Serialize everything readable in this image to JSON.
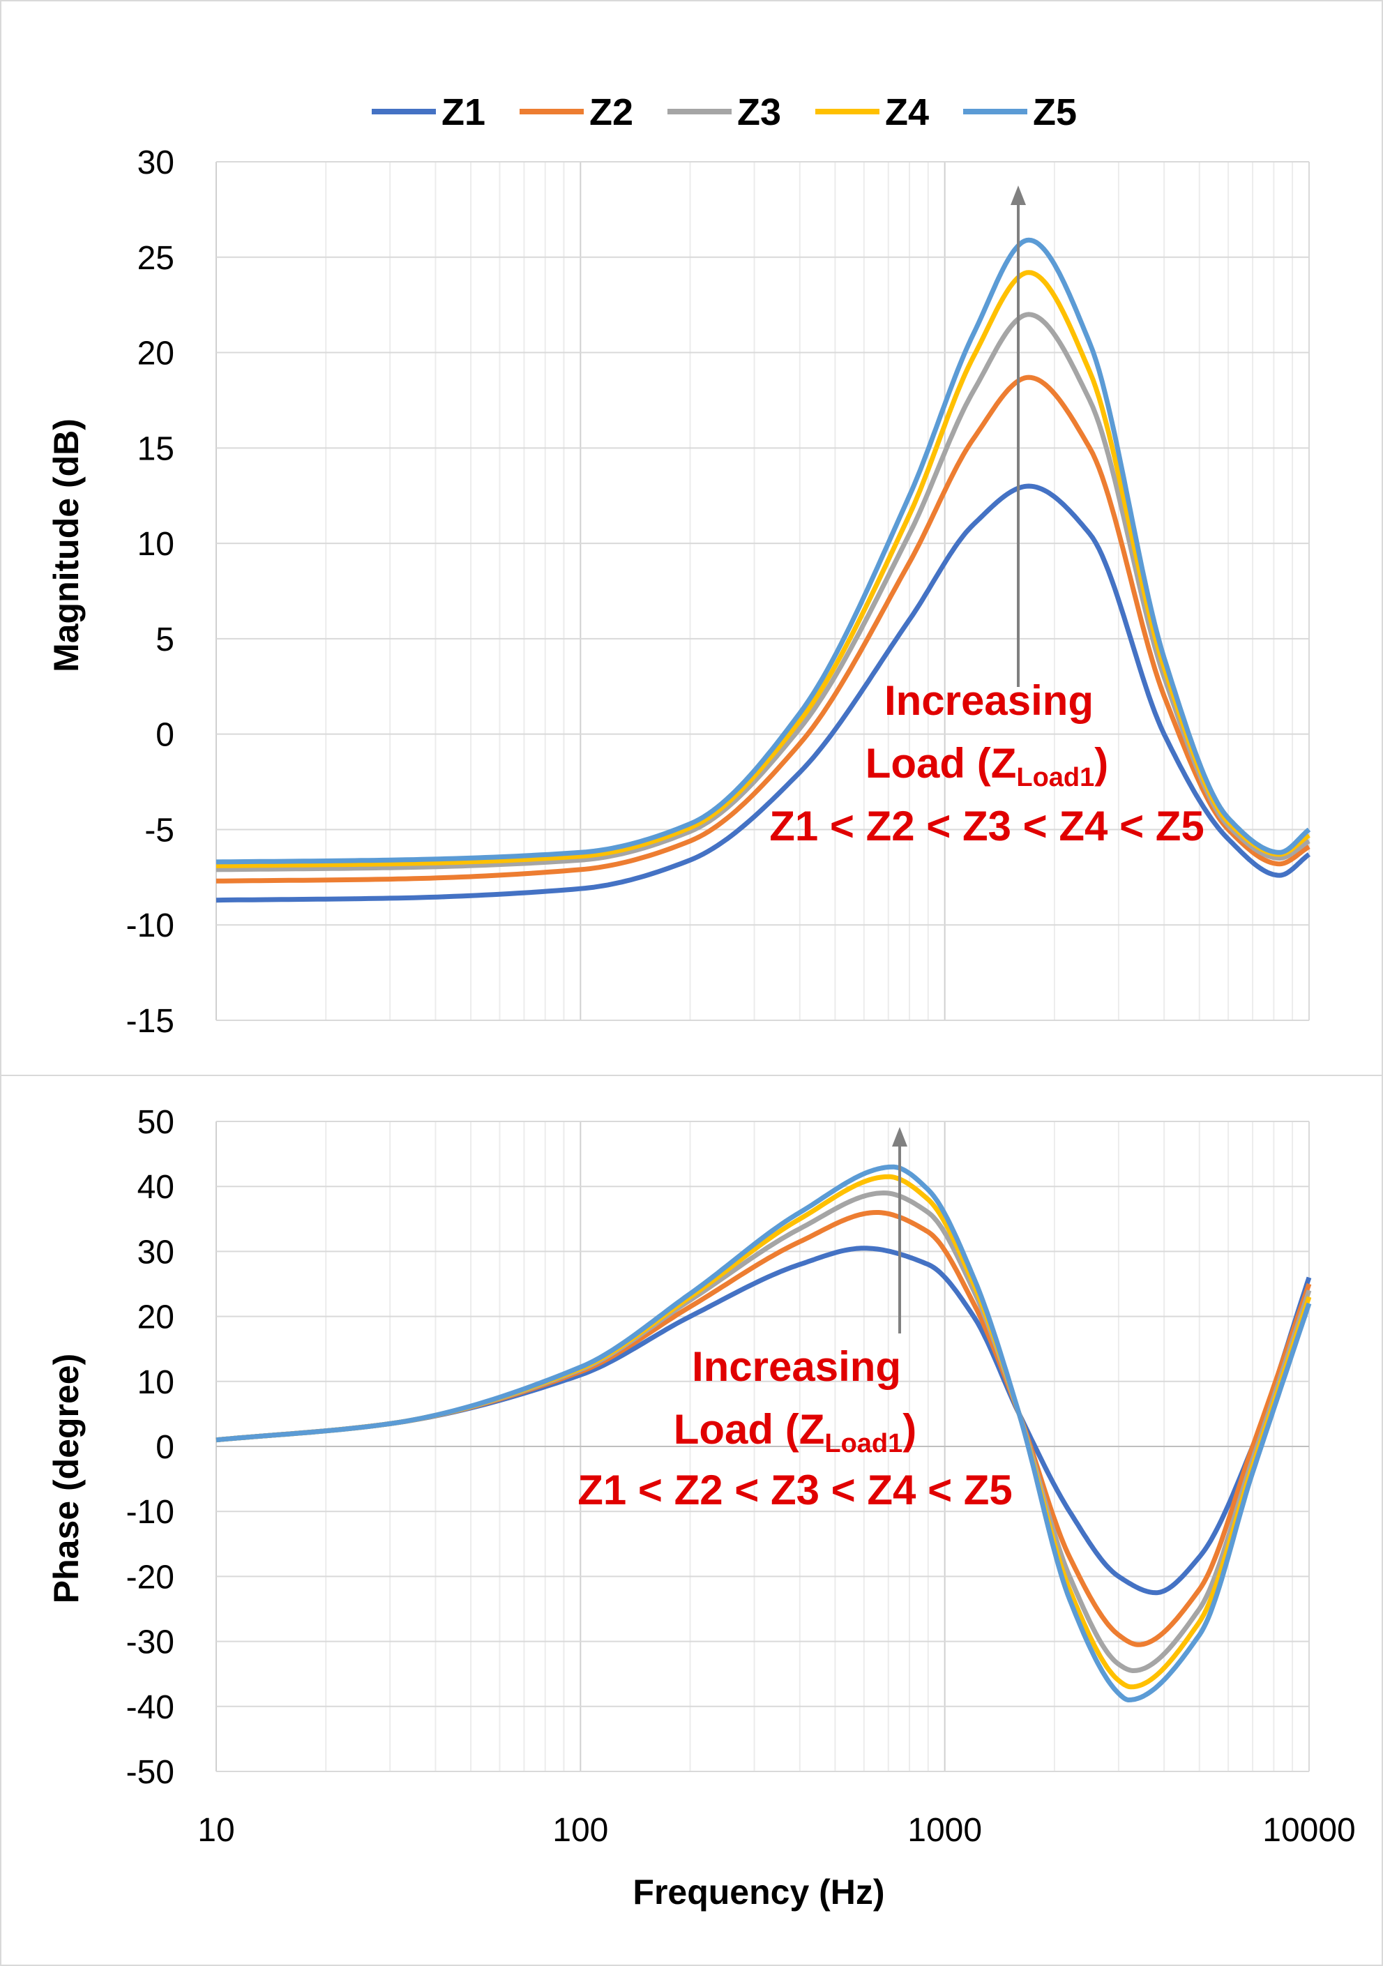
{
  "legend": [
    {
      "name": "Z1",
      "color": "#4472C4"
    },
    {
      "name": "Z2",
      "color": "#ED7D31"
    },
    {
      "name": "Z3",
      "color": "#A5A5A5"
    },
    {
      "name": "Z4",
      "color": "#FFC000"
    },
    {
      "name": "Z5",
      "color": "#5B9BD5"
    }
  ],
  "annotations": {
    "line1": "Increasing",
    "line2_prefix": "Load (Z",
    "line2_sub": "Load1",
    "line2_suffix": ")",
    "line3": "Z1 < Z2  < Z3 < Z4 < Z5"
  },
  "chart_data": [
    {
      "type": "line",
      "xscale": "log",
      "xlim": [
        10,
        10000
      ],
      "ylim": [
        -15,
        30
      ],
      "yticks": [
        "30",
        "25",
        "20",
        "15",
        "10",
        "5",
        "0",
        "-5",
        "-10",
        "-15"
      ],
      "ylabel": "Magnitude (dB)",
      "xlabel": "",
      "grid": true,
      "legend": "top-center",
      "series": [
        {
          "name": "Z1",
          "x": [
            10,
            30,
            100,
            200,
            400,
            800,
            1200,
            1700,
            2500,
            4000,
            6000,
            8300,
            10000
          ],
          "values": [
            -8.7,
            -8.6,
            -8.1,
            -6.6,
            -2.0,
            6.0,
            11.0,
            13.0,
            10.5,
            0.0,
            -5.5,
            -7.4,
            -6.3
          ]
        },
        {
          "name": "Z2",
          "x": [
            10,
            30,
            100,
            200,
            400,
            800,
            1200,
            1700,
            2500,
            4000,
            6000,
            8300,
            10000
          ],
          "values": [
            -7.7,
            -7.6,
            -7.1,
            -5.6,
            -0.5,
            9.0,
            15.5,
            18.7,
            15.0,
            2.0,
            -5.0,
            -6.8,
            -5.9
          ]
        },
        {
          "name": "Z3",
          "x": [
            10,
            30,
            100,
            200,
            400,
            800,
            1200,
            1700,
            2500,
            4000,
            6000,
            8300,
            10000
          ],
          "values": [
            -7.1,
            -7.0,
            -6.6,
            -5.1,
            0.3,
            10.5,
            18.0,
            22.0,
            17.5,
            3.0,
            -4.8,
            -6.5,
            -5.6
          ]
        },
        {
          "name": "Z4",
          "x": [
            10,
            30,
            100,
            200,
            400,
            800,
            1200,
            1700,
            2500,
            4000,
            6000,
            8300,
            10000
          ],
          "values": [
            -6.9,
            -6.8,
            -6.4,
            -4.9,
            0.7,
            11.5,
            19.8,
            24.2,
            19.0,
            3.5,
            -4.6,
            -6.3,
            -5.3
          ]
        },
        {
          "name": "Z5",
          "x": [
            10,
            30,
            100,
            200,
            400,
            800,
            1200,
            1700,
            2500,
            4000,
            6000,
            8300,
            10000
          ],
          "values": [
            -6.7,
            -6.6,
            -6.2,
            -4.7,
            1.1,
            12.5,
            21.0,
            25.9,
            20.5,
            4.0,
            -4.4,
            -6.2,
            -5.0
          ]
        }
      ]
    },
    {
      "type": "line",
      "xscale": "log",
      "xlim": [
        10,
        10000
      ],
      "ylim": [
        -50,
        50
      ],
      "xticks": [
        "10",
        "100",
        "1000",
        "10000"
      ],
      "yticks": [
        "50",
        "40",
        "30",
        "20",
        "10",
        "0",
        "-10",
        "-20",
        "-30",
        "-40",
        "-50"
      ],
      "ylabel": "Phase (degree)",
      "xlabel": "Frequency (Hz)",
      "grid": true,
      "series": [
        {
          "name": "Z1",
          "x": [
            10,
            30,
            100,
            200,
            400,
            600,
            900,
            1200,
            1600,
            2200,
            3000,
            3800,
            5000,
            7000,
            10000
          ],
          "values": [
            1.0,
            3.5,
            11.0,
            20.0,
            28.0,
            30.5,
            28.0,
            20.0,
            5.0,
            -10.0,
            -20.0,
            -22.5,
            -17.0,
            0.0,
            26.0
          ]
        },
        {
          "name": "Z2",
          "x": [
            10,
            30,
            100,
            200,
            400,
            650,
            900,
            1200,
            1600,
            2200,
            3000,
            3400,
            5000,
            7000,
            10000
          ],
          "values": [
            1.0,
            3.5,
            11.5,
            21.5,
            31.5,
            36.0,
            33.0,
            22.0,
            5.0,
            -17.0,
            -29.0,
            -30.5,
            -22.0,
            0.0,
            25.0
          ]
        },
        {
          "name": "Z3",
          "x": [
            10,
            30,
            100,
            200,
            400,
            680,
            900,
            1200,
            1600,
            2200,
            3000,
            3300,
            5000,
            7000,
            10000
          ],
          "values": [
            1.0,
            3.5,
            11.8,
            22.5,
            33.5,
            39.0,
            36.0,
            24.0,
            5.0,
            -20.0,
            -33.5,
            -34.5,
            -25.0,
            -2.0,
            24.0
          ]
        },
        {
          "name": "Z4",
          "x": [
            10,
            30,
            100,
            200,
            400,
            700,
            900,
            1200,
            1600,
            2200,
            3000,
            3250,
            5000,
            7000,
            10000
          ],
          "values": [
            1.0,
            3.5,
            12.0,
            23.0,
            35.0,
            41.5,
            38.0,
            25.0,
            5.0,
            -22.0,
            -36.0,
            -37.0,
            -27.0,
            -3.0,
            23.0
          ]
        },
        {
          "name": "Z5",
          "x": [
            10,
            30,
            100,
            200,
            400,
            720,
            900,
            1200,
            1600,
            2200,
            3000,
            3200,
            5000,
            7000,
            10000
          ],
          "values": [
            1.0,
            3.5,
            12.2,
            23.5,
            36.0,
            43.0,
            39.5,
            26.0,
            5.0,
            -23.5,
            -38.0,
            -39.0,
            -29.0,
            -4.0,
            22.0
          ]
        }
      ]
    }
  ]
}
